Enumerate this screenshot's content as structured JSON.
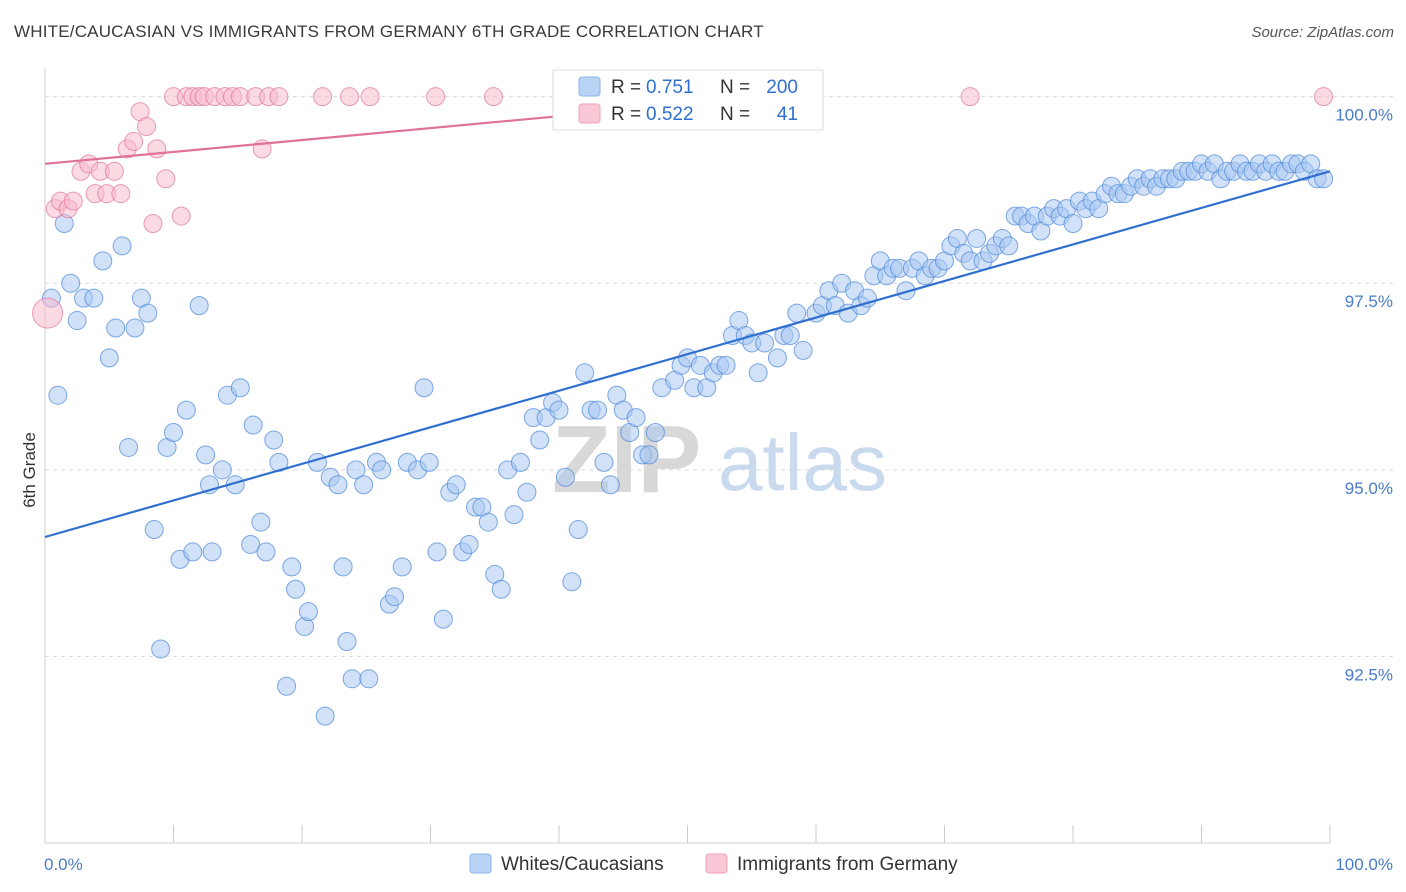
{
  "header": {
    "title": "WHITE/CAUCASIAN VS IMMIGRANTS FROM GERMANY 6TH GRADE CORRELATION CHART",
    "source": "Source: ZipAtlas.com"
  },
  "watermark": {
    "zip": "ZIP",
    "atlas": "atlas"
  },
  "legend": {
    "rows": [
      {
        "r_label": "R =",
        "r_value": "0.751",
        "n_label": "N =",
        "n_value": "200",
        "color": "#9dbff0"
      },
      {
        "r_label": "R =",
        "r_value": "0.522",
        "n_label": "N =",
        "n_value": "41",
        "color": "#f5aec4"
      }
    ]
  },
  "bottom_legend": [
    {
      "label": "Whites/Caucasians",
      "color": "#9dbff0"
    },
    {
      "label": "Immigrants from Germany",
      "color": "#f5aec4"
    }
  ],
  "chart_data": {
    "type": "scatter",
    "title": "WHITE/CAUCASIAN VS IMMIGRANTS FROM GERMANY 6TH GRADE CORRELATION CHART",
    "xlabel": "",
    "ylabel": "6th Grade",
    "xlim": [
      0,
      100
    ],
    "ylim": [
      90.0,
      100.25
    ],
    "x_tick_labels": [
      "0.0%",
      "100.0%"
    ],
    "y_ticks": [
      92.5,
      95.0,
      97.5,
      100.0
    ],
    "y_tick_labels": [
      "92.5%",
      "95.0%",
      "97.5%",
      "100.0%"
    ],
    "grid": true,
    "legend_position": "top-center",
    "series": [
      {
        "name": "Whites/Caucasians",
        "color": "#4a86d8",
        "fill": "#a9c8f2",
        "trend": [
          [
            0,
            94.1
          ],
          [
            100,
            99.0
          ]
        ],
        "points": [
          [
            0.5,
            97.3
          ],
          [
            1.0,
            96.0
          ],
          [
            1.5,
            98.3
          ],
          [
            2.0,
            97.5
          ],
          [
            2.5,
            97.0
          ],
          [
            3.0,
            97.3
          ],
          [
            3.8,
            97.3
          ],
          [
            4.5,
            97.8
          ],
          [
            5.0,
            96.5
          ],
          [
            5.5,
            96.9
          ],
          [
            6.0,
            98.0
          ],
          [
            6.5,
            95.3
          ],
          [
            7.0,
            96.9
          ],
          [
            7.5,
            97.3
          ],
          [
            8.0,
            97.1
          ],
          [
            8.5,
            94.2
          ],
          [
            9.0,
            92.6
          ],
          [
            9.5,
            95.3
          ],
          [
            10.0,
            95.5
          ],
          [
            10.5,
            93.8
          ],
          [
            11.0,
            95.8
          ],
          [
            11.5,
            93.9
          ],
          [
            12.0,
            97.2
          ],
          [
            12.5,
            95.2
          ],
          [
            12.8,
            94.8
          ],
          [
            13.0,
            93.9
          ],
          [
            13.8,
            95.0
          ],
          [
            14.2,
            96.0
          ],
          [
            14.8,
            94.8
          ],
          [
            15.2,
            96.1
          ],
          [
            16.0,
            94.0
          ],
          [
            16.2,
            95.6
          ],
          [
            16.8,
            94.3
          ],
          [
            17.2,
            93.9
          ],
          [
            17.8,
            95.4
          ],
          [
            18.2,
            95.1
          ],
          [
            18.8,
            92.1
          ],
          [
            19.2,
            93.7
          ],
          [
            19.5,
            93.4
          ],
          [
            20.2,
            92.9
          ],
          [
            20.5,
            93.1
          ],
          [
            21.2,
            95.1
          ],
          [
            21.8,
            91.7
          ],
          [
            22.2,
            94.9
          ],
          [
            22.8,
            94.8
          ],
          [
            23.2,
            93.7
          ],
          [
            23.5,
            92.7
          ],
          [
            23.9,
            92.2
          ],
          [
            24.2,
            95.0
          ],
          [
            24.8,
            94.8
          ],
          [
            25.2,
            92.2
          ],
          [
            25.8,
            95.1
          ],
          [
            26.2,
            95.0
          ],
          [
            26.8,
            93.2
          ],
          [
            27.2,
            93.3
          ],
          [
            27.8,
            93.7
          ],
          [
            28.2,
            95.1
          ],
          [
            29.0,
            95.0
          ],
          [
            29.5,
            96.1
          ],
          [
            29.9,
            95.1
          ],
          [
            30.5,
            93.9
          ],
          [
            31.0,
            93.0
          ],
          [
            31.5,
            94.7
          ],
          [
            32.0,
            94.8
          ],
          [
            32.5,
            93.9
          ],
          [
            33.0,
            94.0
          ],
          [
            33.5,
            94.5
          ],
          [
            34.0,
            94.5
          ],
          [
            34.5,
            94.3
          ],
          [
            35.0,
            93.6
          ],
          [
            35.5,
            93.4
          ],
          [
            36.0,
            95.0
          ],
          [
            36.5,
            94.4
          ],
          [
            37.0,
            95.1
          ],
          [
            37.5,
            94.7
          ],
          [
            38.0,
            95.7
          ],
          [
            38.5,
            95.4
          ],
          [
            39.0,
            95.7
          ],
          [
            39.5,
            95.9
          ],
          [
            40.0,
            95.8
          ],
          [
            40.5,
            94.9
          ],
          [
            41.0,
            93.5
          ],
          [
            41.5,
            94.2
          ],
          [
            42.0,
            96.3
          ],
          [
            42.5,
            95.8
          ],
          [
            43.0,
            95.8
          ],
          [
            43.5,
            95.1
          ],
          [
            44.0,
            94.8
          ],
          [
            44.5,
            96.0
          ],
          [
            45.0,
            95.8
          ],
          [
            45.5,
            95.5
          ],
          [
            46.0,
            95.7
          ],
          [
            46.5,
            95.2
          ],
          [
            47.0,
            95.2
          ],
          [
            47.5,
            95.5
          ],
          [
            48.0,
            96.1
          ],
          [
            49.0,
            96.2
          ],
          [
            49.5,
            96.4
          ],
          [
            50.0,
            96.5
          ],
          [
            50.5,
            96.1
          ],
          [
            51.0,
            96.4
          ],
          [
            51.5,
            96.1
          ],
          [
            52.0,
            96.3
          ],
          [
            52.5,
            96.4
          ],
          [
            53.0,
            96.4
          ],
          [
            53.5,
            96.8
          ],
          [
            54.0,
            97.0
          ],
          [
            54.5,
            96.8
          ],
          [
            55.0,
            96.7
          ],
          [
            55.5,
            96.3
          ],
          [
            56.0,
            96.7
          ],
          [
            57.0,
            96.5
          ],
          [
            57.5,
            96.8
          ],
          [
            58.0,
            96.8
          ],
          [
            58.5,
            97.1
          ],
          [
            59.0,
            96.6
          ],
          [
            60.0,
            97.1
          ],
          [
            60.5,
            97.2
          ],
          [
            61.0,
            97.4
          ],
          [
            61.5,
            97.2
          ],
          [
            62.0,
            97.5
          ],
          [
            62.5,
            97.1
          ],
          [
            63.0,
            97.4
          ],
          [
            63.5,
            97.2
          ],
          [
            64.0,
            97.3
          ],
          [
            64.5,
            97.6
          ],
          [
            65.0,
            97.8
          ],
          [
            65.5,
            97.6
          ],
          [
            66.0,
            97.7
          ],
          [
            66.5,
            97.7
          ],
          [
            67.0,
            97.4
          ],
          [
            67.5,
            97.7
          ],
          [
            68.0,
            97.8
          ],
          [
            68.5,
            97.6
          ],
          [
            69.0,
            97.7
          ],
          [
            69.5,
            97.7
          ],
          [
            70.0,
            97.8
          ],
          [
            70.5,
            98.0
          ],
          [
            71.0,
            98.1
          ],
          [
            71.5,
            97.9
          ],
          [
            72.0,
            97.8
          ],
          [
            72.5,
            98.1
          ],
          [
            73.0,
            97.8
          ],
          [
            73.5,
            97.9
          ],
          [
            74.0,
            98.0
          ],
          [
            74.5,
            98.1
          ],
          [
            75.0,
            98.0
          ],
          [
            75.5,
            98.4
          ],
          [
            76.0,
            98.4
          ],
          [
            76.5,
            98.3
          ],
          [
            77.0,
            98.4
          ],
          [
            77.5,
            98.2
          ],
          [
            78.0,
            98.4
          ],
          [
            78.5,
            98.5
          ],
          [
            79.0,
            98.4
          ],
          [
            79.5,
            98.5
          ],
          [
            80.0,
            98.3
          ],
          [
            80.5,
            98.6
          ],
          [
            81.0,
            98.5
          ],
          [
            81.5,
            98.6
          ],
          [
            82.0,
            98.5
          ],
          [
            82.5,
            98.7
          ],
          [
            83.0,
            98.8
          ],
          [
            83.5,
            98.7
          ],
          [
            84.0,
            98.7
          ],
          [
            84.5,
            98.8
          ],
          [
            85.0,
            98.9
          ],
          [
            85.5,
            98.8
          ],
          [
            86.0,
            98.9
          ],
          [
            86.5,
            98.8
          ],
          [
            87.0,
            98.9
          ],
          [
            87.5,
            98.9
          ],
          [
            88.0,
            98.9
          ],
          [
            88.5,
            99.0
          ],
          [
            89.0,
            99.0
          ],
          [
            89.5,
            99.0
          ],
          [
            90.0,
            99.1
          ],
          [
            90.5,
            99.0
          ],
          [
            91.0,
            99.1
          ],
          [
            91.5,
            98.9
          ],
          [
            92.0,
            99.0
          ],
          [
            92.5,
            99.0
          ],
          [
            93.0,
            99.1
          ],
          [
            93.5,
            99.0
          ],
          [
            94.0,
            99.0
          ],
          [
            94.5,
            99.1
          ],
          [
            95.0,
            99.0
          ],
          [
            95.5,
            99.1
          ],
          [
            96.0,
            99.0
          ],
          [
            96.5,
            99.0
          ],
          [
            97.0,
            99.1
          ],
          [
            97.5,
            99.1
          ],
          [
            98.0,
            99.0
          ],
          [
            98.5,
            99.1
          ],
          [
            99.0,
            98.9
          ],
          [
            99.5,
            98.9
          ]
        ]
      },
      {
        "name": "Immigrants from Germany",
        "color": "#e0729a",
        "fill": "#f7bccd",
        "trend": [
          [
            0,
            99.1
          ],
          [
            47,
            99.85
          ]
        ],
        "points": [
          [
            0.2,
            97.1
          ],
          [
            0.8,
            98.5
          ],
          [
            1.2,
            98.6
          ],
          [
            1.8,
            98.5
          ],
          [
            2.2,
            98.6
          ],
          [
            2.8,
            99.0
          ],
          [
            3.4,
            99.1
          ],
          [
            3.9,
            98.7
          ],
          [
            4.3,
            99.0
          ],
          [
            4.8,
            98.7
          ],
          [
            5.4,
            99.0
          ],
          [
            5.9,
            98.7
          ],
          [
            6.4,
            99.3
          ],
          [
            6.9,
            99.4
          ],
          [
            7.4,
            99.8
          ],
          [
            7.9,
            99.6
          ],
          [
            8.4,
            98.3
          ],
          [
            8.7,
            99.3
          ],
          [
            9.4,
            98.9
          ],
          [
            10.0,
            100.0
          ],
          [
            10.6,
            98.4
          ],
          [
            11.0,
            100.0
          ],
          [
            11.5,
            100.0
          ],
          [
            12.0,
            100.0
          ],
          [
            12.4,
            100.0
          ],
          [
            13.2,
            100.0
          ],
          [
            14.0,
            100.0
          ],
          [
            14.6,
            100.0
          ],
          [
            15.2,
            100.0
          ],
          [
            16.4,
            100.0
          ],
          [
            16.9,
            99.3
          ],
          [
            17.4,
            100.0
          ],
          [
            18.2,
            100.0
          ],
          [
            21.6,
            100.0
          ],
          [
            23.7,
            100.0
          ],
          [
            25.3,
            100.0
          ],
          [
            30.4,
            100.0
          ],
          [
            34.9,
            100.0
          ],
          [
            41.7,
            100.0
          ],
          [
            72.0,
            100.0
          ],
          [
            99.5,
            100.0
          ]
        ]
      }
    ]
  }
}
